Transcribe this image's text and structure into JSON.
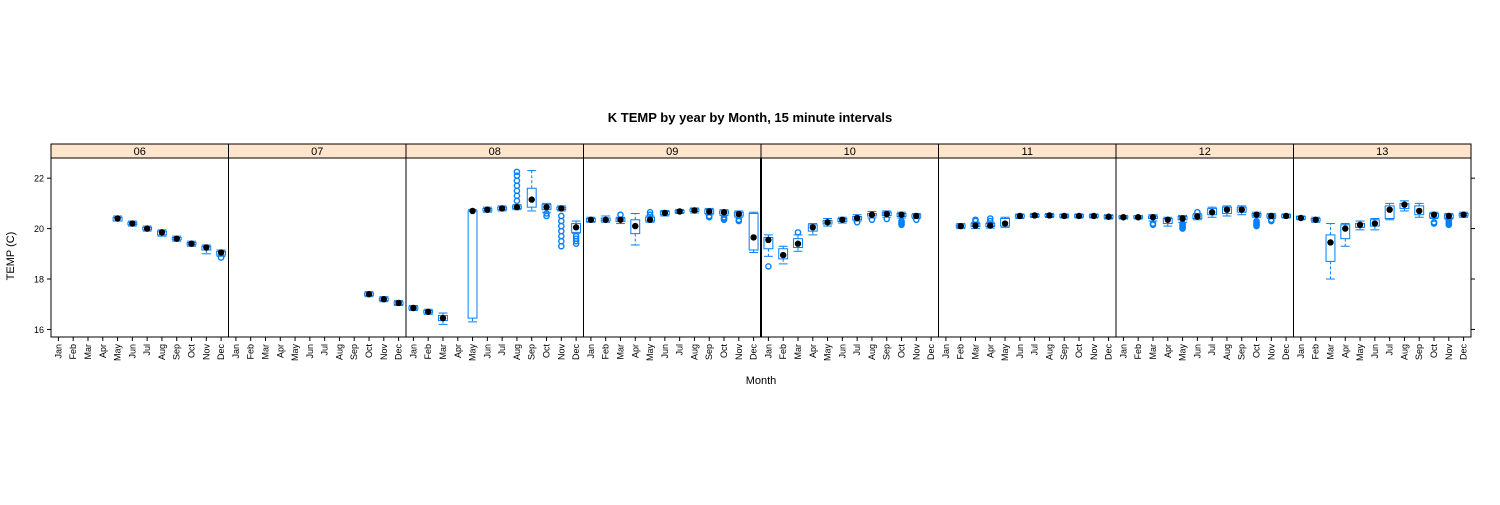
{
  "chart_data": {
    "type": "box",
    "title": "K TEMP by year by Month, 15 minute intervals",
    "xlabel": "Month",
    "ylabel": "TEMP (C)",
    "ylim": [
      15.7,
      22.8
    ],
    "yticks": [
      16,
      18,
      20,
      22
    ],
    "categories": [
      "Jan",
      "Feb",
      "Mar",
      "Apr",
      "May",
      "Jun",
      "Jul",
      "Aug",
      "Sep",
      "Oct",
      "Nov",
      "Dec"
    ],
    "grid": false,
    "legend": "none",
    "colors": {
      "box": "#0080ff",
      "median": "#000000",
      "strip": "#ffe5cc",
      "frame": "#000000"
    },
    "panels": [
      {
        "label": "06",
        "data": [
          null,
          null,
          null,
          null,
          {
            "q1": 20.3,
            "med": 20.4,
            "q3": 20.45,
            "lo": 20.3,
            "hi": 20.5,
            "out": []
          },
          {
            "q1": 20.15,
            "med": 20.2,
            "q3": 20.25,
            "lo": 20.1,
            "hi": 20.3,
            "out": []
          },
          {
            "q1": 19.95,
            "med": 20.0,
            "q3": 20.05,
            "lo": 19.9,
            "hi": 20.1,
            "out": []
          },
          {
            "q1": 19.75,
            "med": 19.85,
            "q3": 19.9,
            "lo": 19.7,
            "hi": 19.95,
            "out": []
          },
          {
            "q1": 19.55,
            "med": 19.6,
            "q3": 19.65,
            "lo": 19.5,
            "hi": 19.7,
            "out": []
          },
          {
            "q1": 19.35,
            "med": 19.4,
            "q3": 19.45,
            "lo": 19.3,
            "hi": 19.5,
            "out": []
          },
          {
            "q1": 19.15,
            "med": 19.25,
            "q3": 19.3,
            "lo": 19.0,
            "hi": 19.35,
            "out": []
          },
          {
            "q1": 18.95,
            "med": 19.05,
            "q3": 19.1,
            "lo": 18.9,
            "hi": 19.15,
            "out": [
              18.85
            ]
          }
        ]
      },
      {
        "label": "07",
        "data": [
          null,
          null,
          null,
          null,
          null,
          null,
          null,
          null,
          null,
          {
            "q1": 17.35,
            "med": 17.4,
            "q3": 17.45,
            "lo": 17.3,
            "hi": 17.5,
            "out": []
          },
          {
            "q1": 17.15,
            "med": 17.2,
            "q3": 17.25,
            "lo": 17.1,
            "hi": 17.3,
            "out": []
          },
          {
            "q1": 16.98,
            "med": 17.05,
            "q3": 17.1,
            "lo": 16.95,
            "hi": 17.15,
            "out": []
          }
        ]
      },
      {
        "label": "08",
        "data": [
          {
            "q1": 16.8,
            "med": 16.85,
            "q3": 16.9,
            "lo": 16.75,
            "hi": 16.95,
            "out": []
          },
          {
            "q1": 16.65,
            "med": 16.7,
            "q3": 16.75,
            "lo": 16.6,
            "hi": 16.8,
            "out": []
          },
          {
            "q1": 16.35,
            "med": 16.45,
            "q3": 16.55,
            "lo": 16.2,
            "hi": 16.65,
            "out": []
          },
          null,
          {
            "q1": 16.45,
            "med": 20.7,
            "q3": 20.7,
            "lo": 16.3,
            "hi": 20.75,
            "out": []
          },
          {
            "q1": 20.7,
            "med": 20.75,
            "q3": 20.8,
            "lo": 20.65,
            "hi": 20.85,
            "out": []
          },
          {
            "q1": 20.75,
            "med": 20.8,
            "q3": 20.85,
            "lo": 20.7,
            "hi": 20.9,
            "out": []
          },
          {
            "q1": 20.8,
            "med": 20.85,
            "q3": 20.9,
            "lo": 20.75,
            "hi": 20.95,
            "out": [
              21.1,
              21.3,
              21.5,
              21.7,
              21.9,
              22.1,
              22.25
            ]
          },
          {
            "q1": 20.85,
            "med": 21.15,
            "q3": 21.6,
            "lo": 20.7,
            "hi": 22.3,
            "out": []
          },
          {
            "q1": 20.75,
            "med": 20.85,
            "q3": 20.95,
            "lo": 20.65,
            "hi": 21.0,
            "out": [
              20.5,
              20.6
            ]
          },
          {
            "q1": 20.75,
            "med": 20.8,
            "q3": 20.85,
            "lo": 20.7,
            "hi": 20.9,
            "out": [
              19.3,
              19.5,
              19.7,
              19.9,
              20.1,
              20.3,
              20.5
            ]
          },
          {
            "q1": 19.85,
            "med": 20.05,
            "q3": 20.2,
            "lo": 19.8,
            "hi": 20.3,
            "out": [
              19.4,
              19.5,
              19.6,
              19.7
            ]
          }
        ]
      },
      {
        "label": "09",
        "data": [
          {
            "q1": 20.28,
            "med": 20.35,
            "q3": 20.4,
            "lo": 20.25,
            "hi": 20.45,
            "out": []
          },
          {
            "q1": 20.3,
            "med": 20.35,
            "q3": 20.42,
            "lo": 20.25,
            "hi": 20.5,
            "out": []
          },
          {
            "q1": 20.28,
            "med": 20.35,
            "q3": 20.42,
            "lo": 20.2,
            "hi": 20.45,
            "out": [
              20.55
            ]
          },
          {
            "q1": 19.8,
            "med": 20.1,
            "q3": 20.35,
            "lo": 19.35,
            "hi": 20.6,
            "out": []
          },
          {
            "q1": 20.3,
            "med": 20.35,
            "q3": 20.45,
            "lo": 20.25,
            "hi": 20.5,
            "out": [
              20.55,
              20.65
            ]
          },
          {
            "q1": 20.55,
            "med": 20.62,
            "q3": 20.68,
            "lo": 20.5,
            "hi": 20.72,
            "out": []
          },
          {
            "q1": 20.63,
            "med": 20.68,
            "q3": 20.72,
            "lo": 20.6,
            "hi": 20.76,
            "out": []
          },
          {
            "q1": 20.68,
            "med": 20.72,
            "q3": 20.78,
            "lo": 20.62,
            "hi": 20.82,
            "out": []
          },
          {
            "q1": 20.6,
            "med": 20.68,
            "q3": 20.75,
            "lo": 20.55,
            "hi": 20.8,
            "out": [
              20.45,
              20.5
            ]
          },
          {
            "q1": 20.58,
            "med": 20.65,
            "q3": 20.7,
            "lo": 20.52,
            "hi": 20.75,
            "out": [
              20.35,
              20.4,
              20.45
            ]
          },
          {
            "q1": 20.5,
            "med": 20.58,
            "q3": 20.65,
            "lo": 20.45,
            "hi": 20.7,
            "out": [
              20.3,
              20.35
            ]
          },
          {
            "q1": 19.15,
            "med": 19.65,
            "q3": 20.6,
            "lo": 19.05,
            "hi": 20.65,
            "out": []
          }
        ]
      },
      {
        "label": "10",
        "data": [
          {
            "q1": 19.2,
            "med": 19.55,
            "q3": 19.65,
            "lo": 18.9,
            "hi": 19.75,
            "out": [
              18.5
            ]
          },
          {
            "q1": 18.8,
            "med": 18.95,
            "q3": 19.2,
            "lo": 18.6,
            "hi": 19.3,
            "out": []
          },
          {
            "q1": 19.25,
            "med": 19.4,
            "q3": 19.6,
            "lo": 19.1,
            "hi": 19.75,
            "out": [
              19.85
            ]
          },
          {
            "q1": 19.9,
            "med": 20.05,
            "q3": 20.15,
            "lo": 19.75,
            "hi": 20.2,
            "out": []
          },
          {
            "q1": 20.18,
            "med": 20.25,
            "q3": 20.32,
            "lo": 20.1,
            "hi": 20.4,
            "out": []
          },
          {
            "q1": 20.28,
            "med": 20.35,
            "q3": 20.4,
            "lo": 20.22,
            "hi": 20.45,
            "out": []
          },
          {
            "q1": 20.35,
            "med": 20.42,
            "q3": 20.48,
            "lo": 20.3,
            "hi": 20.55,
            "out": [
              20.25
            ]
          },
          {
            "q1": 20.5,
            "med": 20.55,
            "q3": 20.6,
            "lo": 20.42,
            "hi": 20.68,
            "out": [
              20.35
            ]
          },
          {
            "q1": 20.52,
            "med": 20.58,
            "q3": 20.65,
            "lo": 20.45,
            "hi": 20.7,
            "out": [
              20.38
            ]
          },
          {
            "q1": 20.48,
            "med": 20.55,
            "q3": 20.6,
            "lo": 20.42,
            "hi": 20.65,
            "out": [
              20.15,
              20.2,
              20.25,
              20.3
            ]
          },
          {
            "q1": 20.45,
            "med": 20.5,
            "q3": 20.55,
            "lo": 20.4,
            "hi": 20.6,
            "out": [
              20.35
            ]
          },
          null
        ]
      },
      {
        "label": "11",
        "data": [
          null,
          {
            "q1": 20.05,
            "med": 20.1,
            "q3": 20.15,
            "lo": 20.0,
            "hi": 20.2,
            "out": []
          },
          {
            "q1": 20.08,
            "med": 20.12,
            "q3": 20.2,
            "lo": 20.0,
            "hi": 20.25,
            "out": [
              20.3,
              20.35
            ]
          },
          {
            "q1": 20.08,
            "med": 20.12,
            "q3": 20.2,
            "lo": 20.02,
            "hi": 20.25,
            "out": [
              20.3,
              20.4
            ]
          },
          {
            "q1": 20.1,
            "med": 20.2,
            "q3": 20.4,
            "lo": 20.05,
            "hi": 20.45,
            "out": []
          },
          {
            "q1": 20.45,
            "med": 20.5,
            "q3": 20.55,
            "lo": 20.4,
            "hi": 20.58,
            "out": []
          },
          {
            "q1": 20.48,
            "med": 20.52,
            "q3": 20.56,
            "lo": 20.44,
            "hi": 20.6,
            "out": []
          },
          {
            "q1": 20.48,
            "med": 20.52,
            "q3": 20.56,
            "lo": 20.44,
            "hi": 20.6,
            "out": []
          },
          {
            "q1": 20.46,
            "med": 20.5,
            "q3": 20.55,
            "lo": 20.42,
            "hi": 20.58,
            "out": []
          },
          {
            "q1": 20.46,
            "med": 20.5,
            "q3": 20.55,
            "lo": 20.42,
            "hi": 20.58,
            "out": []
          },
          {
            "q1": 20.46,
            "med": 20.5,
            "q3": 20.55,
            "lo": 20.42,
            "hi": 20.58,
            "out": []
          },
          {
            "q1": 20.42,
            "med": 20.47,
            "q3": 20.52,
            "lo": 20.38,
            "hi": 20.55,
            "out": []
          }
        ]
      },
      {
        "label": "12",
        "data": [
          {
            "q1": 20.42,
            "med": 20.45,
            "q3": 20.5,
            "lo": 20.38,
            "hi": 20.52,
            "out": []
          },
          {
            "q1": 20.42,
            "med": 20.45,
            "q3": 20.5,
            "lo": 20.38,
            "hi": 20.52,
            "out": []
          },
          {
            "q1": 20.4,
            "med": 20.45,
            "q3": 20.5,
            "lo": 20.3,
            "hi": 20.55,
            "out": [
              20.15,
              20.2
            ]
          },
          {
            "q1": 20.2,
            "med": 20.35,
            "q3": 20.4,
            "lo": 20.1,
            "hi": 20.45,
            "out": []
          },
          {
            "q1": 20.35,
            "med": 20.4,
            "q3": 20.48,
            "lo": 20.25,
            "hi": 20.52,
            "out": [
              20.0,
              20.05,
              20.1,
              20.15,
              20.2
            ]
          },
          {
            "q1": 20.4,
            "med": 20.48,
            "q3": 20.55,
            "lo": 20.35,
            "hi": 20.6,
            "out": [
              20.65
            ]
          },
          {
            "q1": 20.55,
            "med": 20.65,
            "q3": 20.8,
            "lo": 20.45,
            "hi": 20.85,
            "out": []
          },
          {
            "q1": 20.6,
            "med": 20.75,
            "q3": 20.85,
            "lo": 20.5,
            "hi": 20.9,
            "out": []
          },
          {
            "q1": 20.65,
            "med": 20.75,
            "q3": 20.85,
            "lo": 20.55,
            "hi": 20.9,
            "out": []
          },
          {
            "q1": 20.5,
            "med": 20.55,
            "q3": 20.6,
            "lo": 20.45,
            "hi": 20.65,
            "out": [
              20.1,
              20.15,
              20.2,
              20.25,
              20.3
            ]
          },
          {
            "q1": 20.45,
            "med": 20.5,
            "q3": 20.55,
            "lo": 20.4,
            "hi": 20.6,
            "out": [
              20.3,
              20.35
            ]
          },
          {
            "q1": 20.45,
            "med": 20.5,
            "q3": 20.55,
            "lo": 20.42,
            "hi": 20.58,
            "out": []
          }
        ]
      },
      {
        "label": "13",
        "data": [
          {
            "q1": 20.38,
            "med": 20.42,
            "q3": 20.48,
            "lo": 20.35,
            "hi": 20.5,
            "out": []
          },
          {
            "q1": 20.3,
            "med": 20.35,
            "q3": 20.4,
            "lo": 20.25,
            "hi": 20.45,
            "out": []
          },
          {
            "q1": 18.7,
            "med": 19.45,
            "q3": 19.75,
            "lo": 18.0,
            "hi": 20.2,
            "out": []
          },
          {
            "q1": 19.6,
            "med": 20.0,
            "q3": 20.15,
            "lo": 19.3,
            "hi": 20.2,
            "out": []
          },
          {
            "q1": 20.05,
            "med": 20.15,
            "q3": 20.2,
            "lo": 19.95,
            "hi": 20.3,
            "out": []
          },
          {
            "q1": 20.1,
            "med": 20.2,
            "q3": 20.35,
            "lo": 19.95,
            "hi": 20.4,
            "out": []
          },
          {
            "q1": 20.4,
            "med": 20.75,
            "q3": 20.9,
            "lo": 20.35,
            "hi": 21.0,
            "out": []
          },
          {
            "q1": 20.8,
            "med": 20.95,
            "q3": 21.0,
            "lo": 20.7,
            "hi": 21.1,
            "out": []
          },
          {
            "q1": 20.55,
            "med": 20.7,
            "q3": 20.9,
            "lo": 20.45,
            "hi": 21.0,
            "out": []
          },
          {
            "q1": 20.45,
            "med": 20.55,
            "q3": 20.6,
            "lo": 20.4,
            "hi": 20.65,
            "out": [
              20.2,
              20.25
            ]
          },
          {
            "q1": 20.42,
            "med": 20.5,
            "q3": 20.55,
            "lo": 20.38,
            "hi": 20.6,
            "out": [
              20.15,
              20.2,
              20.25,
              20.3,
              20.35
            ]
          },
          {
            "q1": 20.5,
            "med": 20.55,
            "q3": 20.6,
            "lo": 20.45,
            "hi": 20.65,
            "out": []
          }
        ]
      }
    ]
  }
}
